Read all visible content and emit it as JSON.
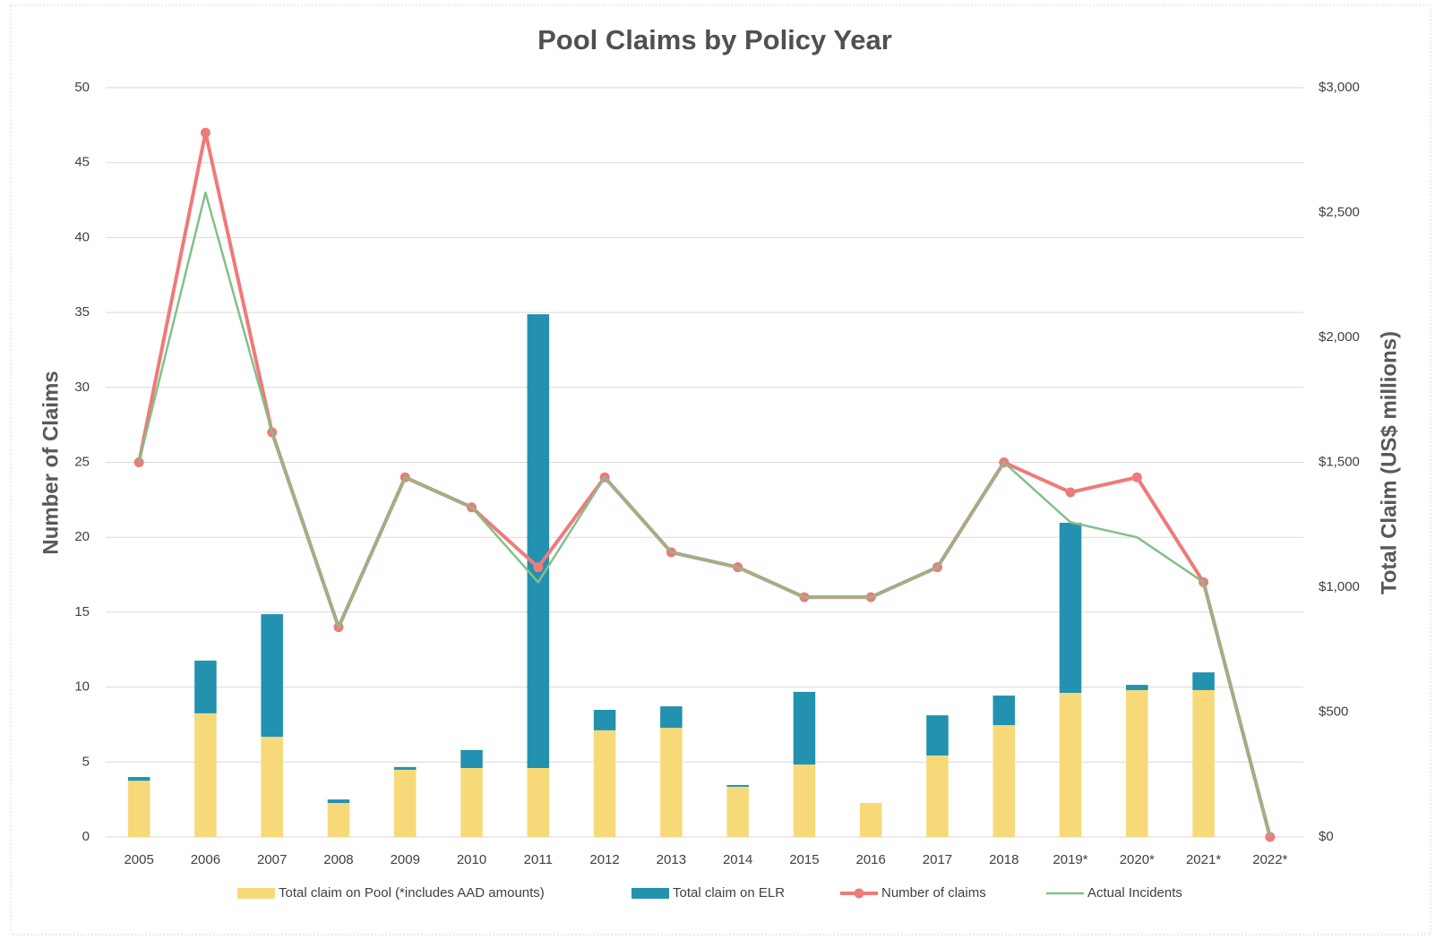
{
  "chart_data": {
    "type": "bar-line",
    "title": "Pool Claims by Policy Year",
    "ylabel": "Number of Claims",
    "y2label": "Total Claim (US$ millions)",
    "categories": [
      "2005",
      "2006",
      "2007",
      "2008",
      "2009",
      "2010",
      "2011",
      "2012",
      "2013",
      "2014",
      "2015",
      "2016",
      "2017",
      "2018",
      "2019*",
      "2020*",
      "2021*",
      "2022*"
    ],
    "series": [
      {
        "name": "Total claim on Pool (*includes AAD amounts)",
        "type": "bar",
        "axis": "y2",
        "color": "#f7d97a",
        "values": [
          225,
          495,
          401,
          136,
          269,
          276,
          276,
          427,
          437,
          201,
          290,
          136,
          326,
          448,
          577,
          588,
          588,
          0
        ]
      },
      {
        "name": "Total claim on ELR",
        "type": "bar",
        "axis": "y2",
        "color": "#2391b0",
        "values": [
          15,
          211,
          491,
          14,
          11,
          72,
          1817,
          82,
          86,
          7,
          291,
          0,
          161,
          118,
          681,
          21,
          71,
          0
        ]
      },
      {
        "name": "Number of claims",
        "type": "line",
        "axis": "y",
        "color": "#ef7a7a",
        "markers": true,
        "values": [
          25,
          47,
          27,
          14,
          24,
          22,
          18,
          24,
          19,
          18,
          16,
          16,
          18,
          25,
          23,
          24,
          17,
          0
        ]
      },
      {
        "name": "Actual Incidents",
        "type": "line",
        "axis": "y",
        "color": "#82c08a",
        "markers": false,
        "values": [
          25,
          43,
          27,
          14,
          24,
          22,
          17,
          24,
          19,
          18,
          16,
          16,
          18,
          25,
          21,
          20,
          17,
          0
        ]
      }
    ],
    "ylim": [
      0,
      50
    ],
    "yticks": [
      0,
      5,
      10,
      15,
      20,
      25,
      30,
      35,
      40,
      45,
      50
    ],
    "y2lim": [
      0,
      3000
    ],
    "y2ticks": [
      {
        "value": 0,
        "label": "$0"
      },
      {
        "value": 500,
        "label": "$500"
      },
      {
        "value": 1000,
        "label": "$1,000"
      },
      {
        "value": 1500,
        "label": "$1,500"
      },
      {
        "value": 2000,
        "label": "$2,000"
      },
      {
        "value": 2500,
        "label": "$2,500"
      },
      {
        "value": 3000,
        "label": "$3,000"
      }
    ],
    "grid": true,
    "legend": "bottom"
  }
}
